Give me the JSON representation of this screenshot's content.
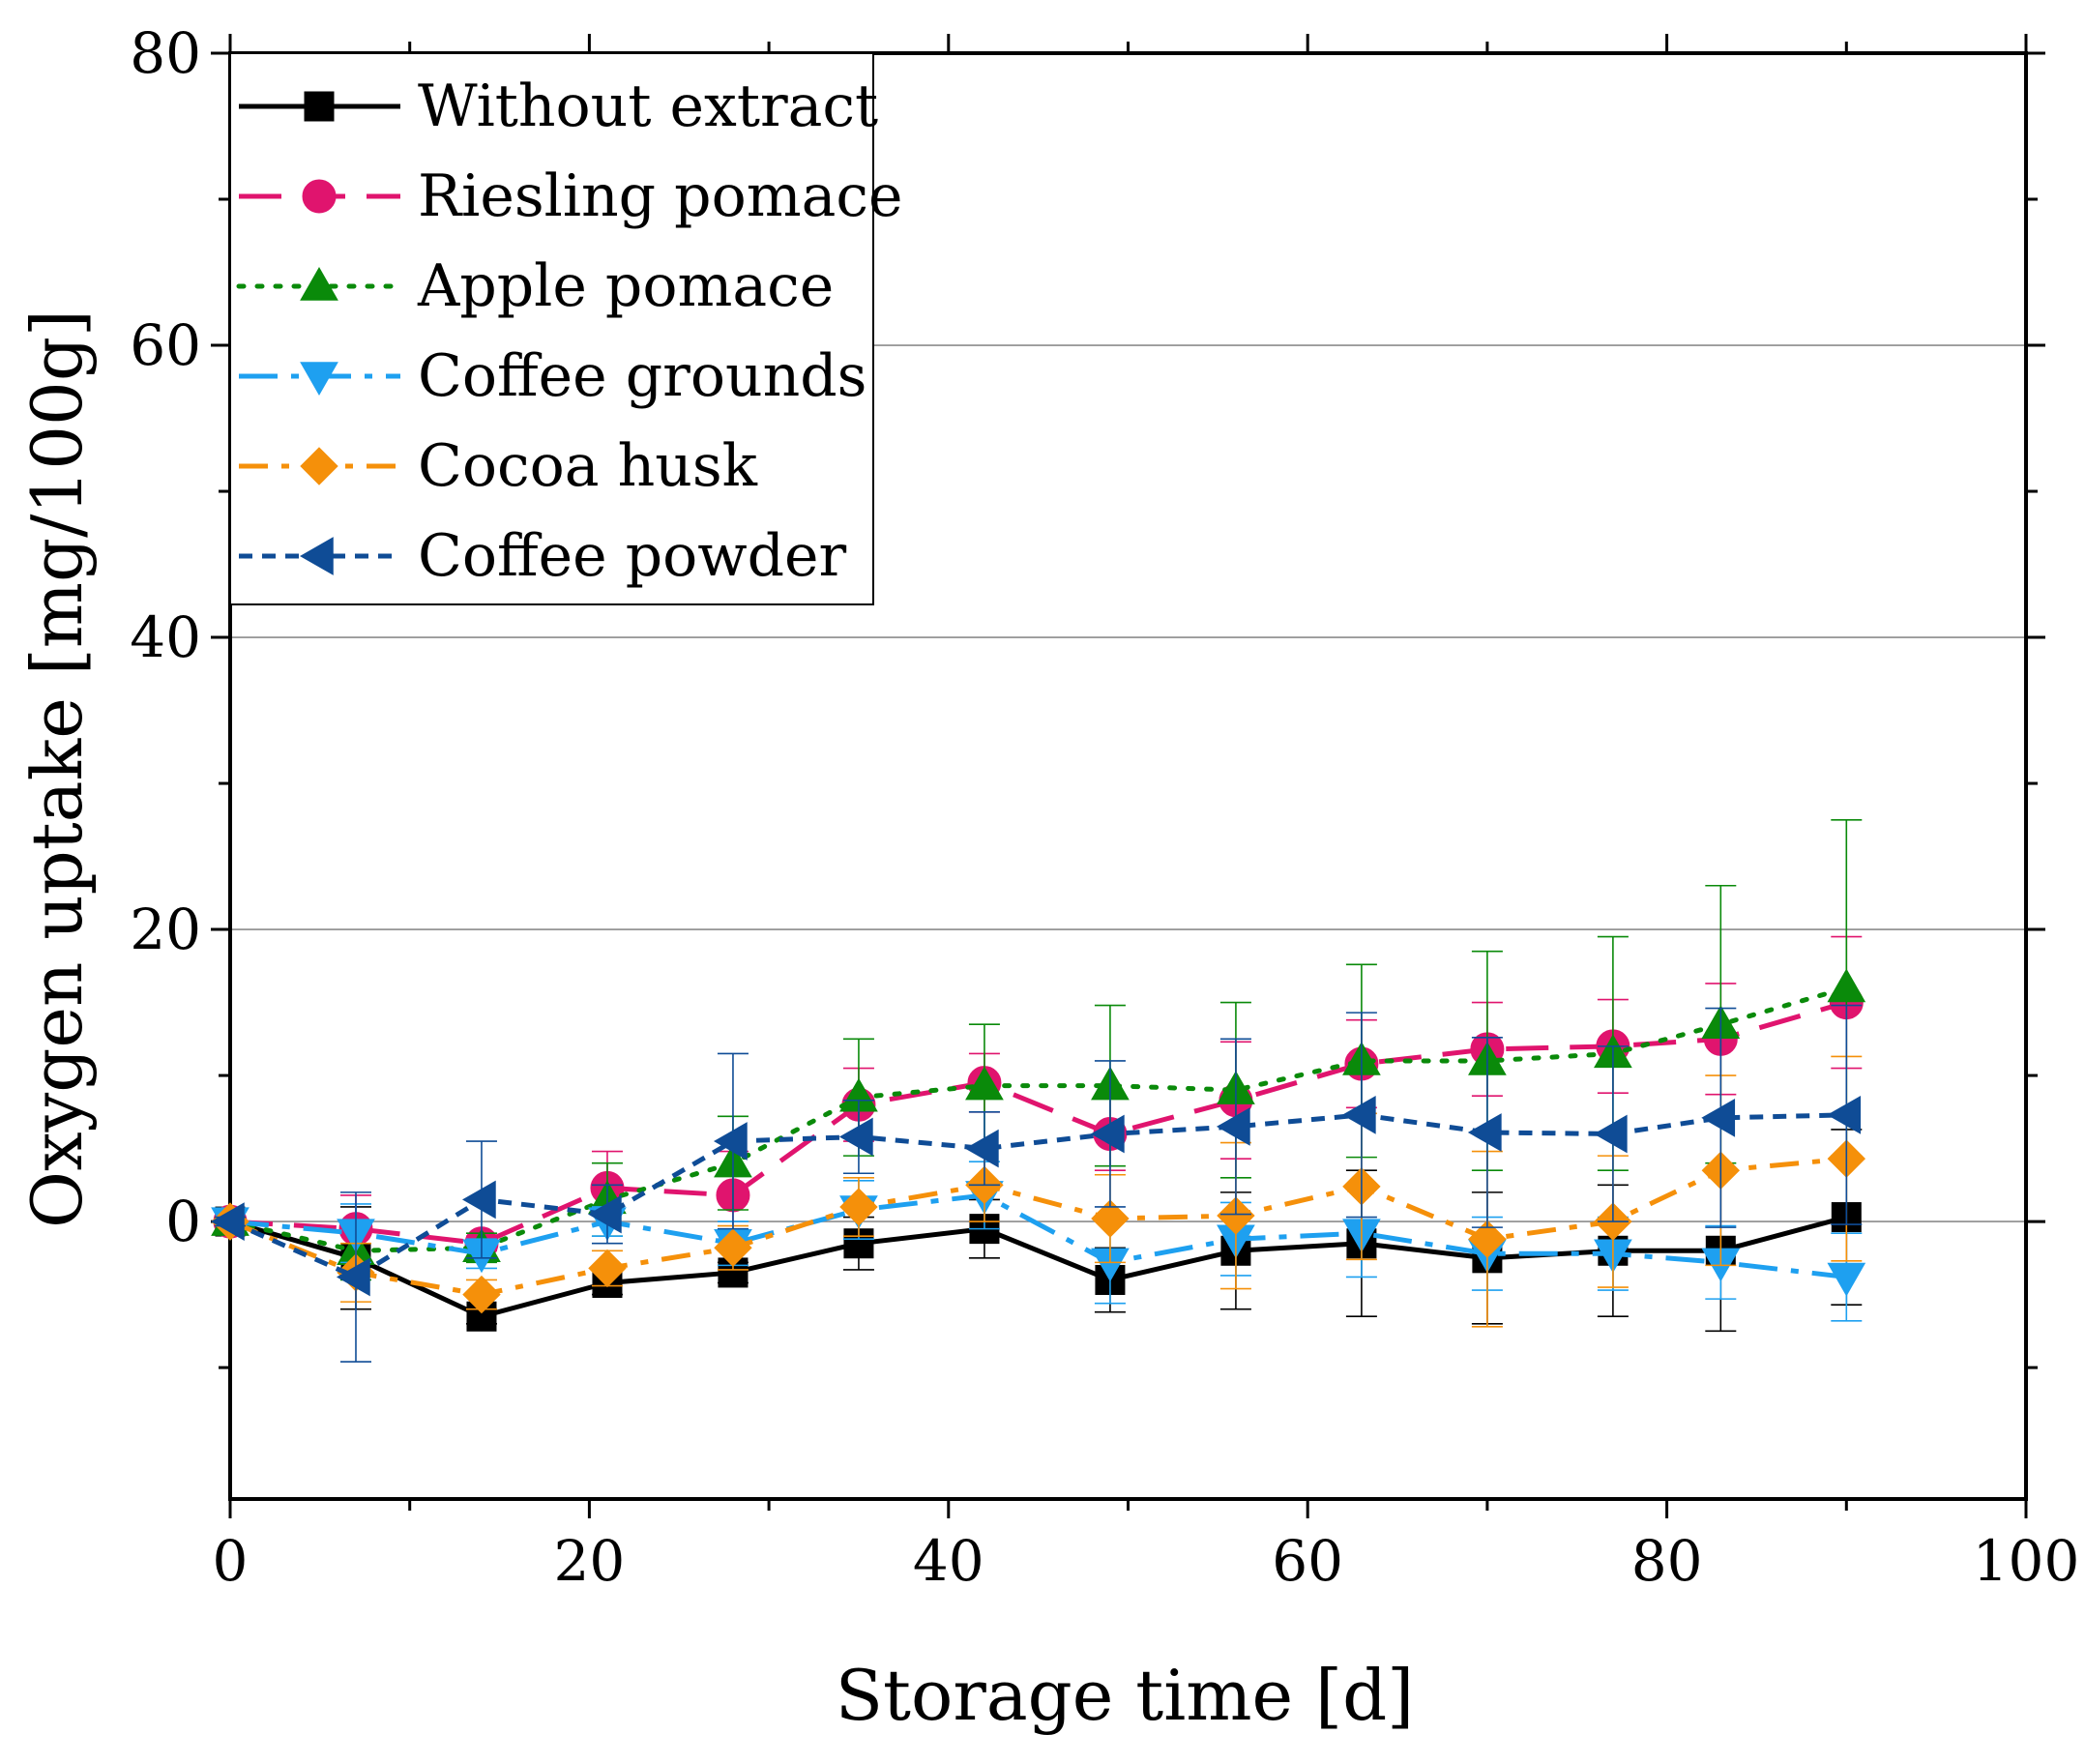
{
  "chart_data": {
    "type": "line",
    "title": "",
    "xlabel": "Storage time [d]",
    "ylabel": "Oxygen uptake [mg/100g]",
    "xlim": [
      0,
      100
    ],
    "ylim": [
      -19,
      80
    ],
    "xticks": [
      0,
      20,
      40,
      60,
      80,
      100
    ],
    "xtick_labels": [
      "0",
      "20",
      "40",
      "60",
      "80",
      "100"
    ],
    "yticks": [
      0,
      20,
      40,
      60,
      80
    ],
    "ytick_labels": [
      "0",
      "20",
      "40",
      "60",
      "80"
    ],
    "grid_y": [
      20,
      40,
      60
    ],
    "legend_position": "top-left",
    "x": [
      0,
      7,
      14,
      21,
      28,
      35,
      42,
      49,
      56,
      63,
      70,
      77,
      83,
      90
    ],
    "series": [
      {
        "name": "Without extract",
        "color": "#000000",
        "marker": "square",
        "line": "solid",
        "values": [
          0,
          -2.5,
          -6.5,
          -4.2,
          -3.5,
          -1.5,
          -0.5,
          -4.0,
          -2.0,
          -1.5,
          -2.5,
          -2.0,
          -2.0,
          0.3
        ],
        "errors": [
          0.3,
          3.5,
          0.5,
          0.8,
          0.7,
          1.8,
          2.0,
          2.2,
          4.0,
          5.0,
          4.5,
          4.5,
          5.5,
          6.0
        ]
      },
      {
        "name": "Riesling pomace",
        "color": "#e0146e",
        "marker": "circle",
        "line": "dash",
        "values": [
          0,
          -0.5,
          -1.5,
          2.3,
          1.8,
          8.0,
          9.5,
          6.0,
          8.3,
          10.8,
          11.8,
          12.0,
          12.5,
          15.0
        ],
        "errors": [
          0.3,
          2.3,
          0.5,
          2.5,
          3.0,
          2.5,
          2.0,
          2.5,
          4.0,
          3.0,
          3.2,
          3.2,
          3.8,
          4.5
        ]
      },
      {
        "name": "Apple pomace",
        "color": "#0a8a0a",
        "marker": "triangle-up",
        "line": "dot",
        "values": [
          0,
          -2.0,
          -1.8,
          1.5,
          4.0,
          8.5,
          9.3,
          9.3,
          9.0,
          11.0,
          11.0,
          11.5,
          13.5,
          16.0
        ],
        "errors": [
          0.3,
          2.0,
          1.0,
          2.5,
          3.2,
          4.0,
          4.2,
          5.5,
          6.0,
          6.6,
          7.5,
          8.0,
          9.5,
          11.5
        ]
      },
      {
        "name": "Coffee grounds",
        "color": "#1ea0f0",
        "marker": "triangle-down",
        "line": "dashdot",
        "values": [
          0,
          -0.8,
          -2.2,
          0,
          -1.5,
          0.8,
          1.8,
          -2.8,
          -1.2,
          -0.8,
          -2.2,
          -2.2,
          -2.8,
          -3.8
        ],
        "errors": [
          0.3,
          2.0,
          1.0,
          1.0,
          1.5,
          2.0,
          2.3,
          2.8,
          2.5,
          3.0,
          2.5,
          2.5,
          2.5,
          3.0
        ]
      },
      {
        "name": "Cocoa husk",
        "color": "#f5900a",
        "marker": "diamond",
        "line": "dashdotlong",
        "values": [
          0,
          -3.5,
          -5.0,
          -3.2,
          -1.8,
          1.0,
          2.5,
          0.2,
          0.4,
          2.4,
          -1.2,
          0,
          3.5,
          4.3
        ],
        "errors": [
          0.3,
          2.0,
          1.0,
          1.2,
          1.5,
          2.0,
          2.5,
          3.0,
          5.0,
          5.0,
          6.0,
          4.5,
          6.5,
          7.0
        ]
      },
      {
        "name": "Coffee powder",
        "color": "#0f4c96",
        "marker": "triangle-left",
        "line": "shortdash",
        "values": [
          0,
          -3.8,
          1.5,
          0.5,
          5.5,
          5.8,
          5.0,
          6.0,
          6.5,
          7.3,
          6.1,
          6.0,
          7.1,
          7.3
        ],
        "errors": [
          0.3,
          5.8,
          4.0,
          2.0,
          6.0,
          2.5,
          2.5,
          5.0,
          6.0,
          7.0,
          6.5,
          6.0,
          7.5,
          7.5
        ]
      }
    ]
  }
}
